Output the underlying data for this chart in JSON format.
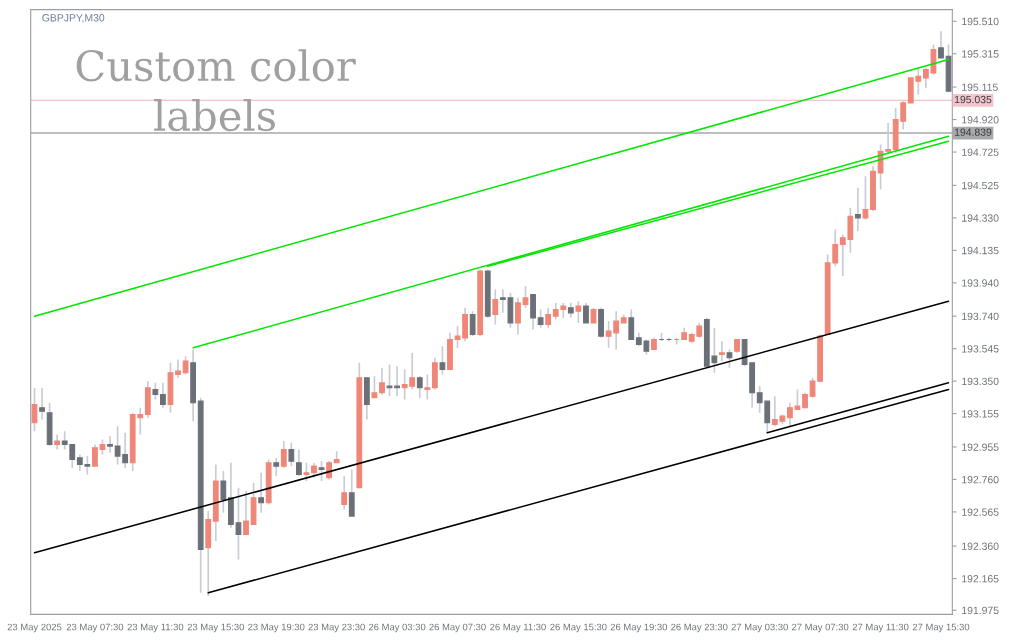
{
  "chart_data": {
    "type": "candlestick",
    "title": "GBPJPY,M30",
    "annotations": [
      "Custom color\nlabels"
    ],
    "categories": [
      "23 May 2025",
      null,
      null,
      null,
      null,
      null,
      null,
      null,
      "23 May 07:30",
      null,
      null,
      null,
      null,
      null,
      null,
      null,
      "23 May 11:30",
      null,
      null,
      null,
      null,
      null,
      null,
      null,
      "23 May 15:30",
      null,
      null,
      null,
      null,
      null,
      null,
      null,
      "23 May 19:30",
      null,
      null,
      null,
      null,
      null,
      null,
      null,
      "23 May 23:30",
      null,
      null,
      null,
      null,
      null,
      null,
      null,
      "26 May 03:30",
      null,
      null,
      null,
      null,
      null,
      null,
      null,
      "26 May 07:30",
      null,
      null,
      null,
      null,
      null,
      null,
      null,
      "26 May 11:30",
      null,
      null,
      null,
      null,
      null,
      null,
      null,
      "26 May 15:30",
      null,
      null,
      null,
      null,
      null,
      null,
      null,
      "26 May 19:30",
      null,
      null,
      null,
      null,
      null,
      null,
      null,
      "26 May 23:30",
      null,
      null,
      null,
      null,
      null,
      null,
      null,
      "27 May 03:30",
      null,
      null,
      null,
      null,
      null,
      null,
      null,
      "27 May 07:30",
      null,
      null,
      null,
      null,
      null,
      null,
      null,
      "27 May 11:30",
      null,
      null,
      null,
      null,
      null,
      null,
      null,
      "27 May 15:30",
      null
    ],
    "ohlc": [
      [
        193.1,
        193.31,
        193.05,
        193.21
      ],
      [
        193.19,
        193.31,
        193.12,
        193.17
      ],
      [
        193.16,
        193.22,
        192.96,
        192.97
      ],
      [
        192.97,
        193.03,
        192.94,
        192.99
      ],
      [
        192.99,
        193.05,
        192.94,
        192.97
      ],
      [
        192.97,
        192.97,
        192.83,
        192.88
      ],
      [
        192.89,
        192.91,
        192.81,
        192.85
      ],
      [
        192.85,
        192.9,
        192.79,
        192.84
      ],
      [
        192.84,
        192.97,
        192.84,
        192.95
      ],
      [
        192.94,
        193.0,
        192.91,
        192.97
      ],
      [
        192.97,
        193.02,
        192.92,
        192.96
      ],
      [
        192.96,
        193.08,
        192.85,
        192.9
      ],
      [
        192.91,
        193.04,
        192.83,
        192.86
      ],
      [
        192.86,
        193.16,
        192.81,
        193.15
      ],
      [
        193.13,
        193.19,
        193.03,
        193.15
      ],
      [
        193.15,
        193.35,
        193.13,
        193.31
      ],
      [
        193.3,
        193.34,
        193.24,
        193.27
      ],
      [
        193.27,
        193.34,
        193.19,
        193.21
      ],
      [
        193.21,
        193.46,
        193.16,
        193.4
      ],
      [
        193.39,
        193.48,
        193.37,
        193.41
      ],
      [
        193.4,
        193.5,
        193.39,
        193.47
      ],
      [
        193.46,
        193.54,
        193.11,
        193.22
      ],
      [
        193.23,
        193.25,
        192.08,
        192.34
      ],
      [
        192.35,
        192.57,
        192.06,
        192.52
      ],
      [
        192.51,
        192.85,
        192.39,
        192.75
      ],
      [
        192.75,
        192.81,
        192.56,
        192.64
      ],
      [
        192.65,
        192.86,
        192.47,
        192.49
      ],
      [
        192.5,
        192.71,
        192.28,
        192.43
      ],
      [
        192.43,
        192.69,
        192.43,
        192.51
      ],
      [
        192.49,
        192.74,
        192.49,
        192.65
      ],
      [
        192.65,
        192.8,
        192.56,
        192.62
      ],
      [
        192.62,
        192.88,
        192.61,
        192.86
      ],
      [
        192.86,
        192.89,
        192.78,
        192.84
      ],
      [
        192.84,
        192.99,
        192.83,
        192.94
      ],
      [
        192.94,
        192.98,
        192.84,
        192.87
      ],
      [
        192.86,
        192.94,
        192.78,
        192.79
      ],
      [
        192.79,
        192.86,
        192.75,
        192.8
      ],
      [
        192.8,
        192.86,
        192.77,
        192.84
      ],
      [
        192.83,
        192.87,
        192.75,
        192.82
      ],
      [
        192.77,
        192.87,
        192.76,
        192.86
      ],
      [
        192.86,
        192.93,
        192.86,
        192.88
      ],
      [
        192.61,
        192.78,
        192.58,
        192.68
      ],
      [
        192.68,
        192.82,
        192.54,
        192.54
      ],
      [
        192.71,
        193.46,
        192.71,
        193.37
      ],
      [
        193.37,
        193.37,
        193.12,
        193.21
      ],
      [
        193.25,
        193.38,
        193.25,
        193.28
      ],
      [
        193.28,
        193.43,
        193.27,
        193.34
      ],
      [
        193.32,
        193.45,
        193.26,
        193.31
      ],
      [
        193.32,
        193.44,
        193.26,
        193.31
      ],
      [
        193.31,
        193.42,
        193.24,
        193.33
      ],
      [
        193.32,
        193.52,
        193.3,
        193.37
      ],
      [
        193.37,
        193.38,
        193.25,
        193.31
      ],
      [
        193.3,
        193.39,
        193.24,
        193.31
      ],
      [
        193.31,
        193.49,
        193.3,
        193.46
      ],
      [
        193.46,
        193.56,
        193.39,
        193.42
      ],
      [
        193.42,
        193.64,
        193.42,
        193.6
      ],
      [
        193.6,
        193.68,
        193.55,
        193.62
      ],
      [
        193.61,
        193.79,
        193.59,
        193.75
      ],
      [
        193.75,
        193.77,
        193.62,
        193.63
      ],
      [
        193.63,
        194.02,
        193.62,
        194.01
      ],
      [
        194.01,
        194.02,
        193.73,
        193.74
      ],
      [
        193.75,
        193.9,
        193.69,
        193.84
      ],
      [
        193.85,
        193.9,
        193.76,
        193.84
      ],
      [
        193.85,
        193.88,
        193.67,
        193.7
      ],
      [
        193.7,
        193.85,
        193.63,
        193.82
      ],
      [
        193.81,
        193.92,
        193.79,
        193.85
      ],
      [
        193.87,
        193.87,
        193.66,
        193.73
      ],
      [
        193.73,
        193.78,
        193.67,
        193.69
      ],
      [
        193.69,
        193.79,
        193.67,
        193.75
      ],
      [
        193.74,
        193.82,
        193.72,
        193.78
      ],
      [
        193.78,
        193.82,
        193.73,
        193.8
      ],
      [
        193.79,
        193.82,
        193.73,
        193.76
      ],
      [
        193.77,
        193.83,
        193.7,
        193.8
      ],
      [
        193.8,
        193.82,
        193.7,
        193.7
      ],
      [
        193.7,
        193.79,
        193.7,
        193.78
      ],
      [
        193.78,
        193.79,
        193.61,
        193.62
      ],
      [
        193.62,
        193.71,
        193.55,
        193.65
      ],
      [
        193.64,
        193.77,
        193.54,
        193.71
      ],
      [
        193.7,
        193.75,
        193.7,
        193.73
      ],
      [
        193.73,
        193.78,
        193.6,
        193.6
      ],
      [
        193.61,
        193.64,
        193.56,
        193.57
      ],
      [
        193.59,
        193.6,
        193.51,
        193.53
      ],
      [
        193.54,
        193.61,
        193.54,
        193.6
      ],
      [
        193.6,
        193.64,
        193.59,
        193.6
      ],
      [
        193.6,
        193.61,
        193.59,
        193.6
      ],
      [
        193.6,
        193.61,
        193.57,
        193.6
      ],
      [
        193.6,
        193.67,
        193.6,
        193.64
      ],
      [
        193.59,
        193.64,
        193.58,
        193.63
      ],
      [
        193.62,
        193.7,
        193.61,
        193.68
      ],
      [
        193.72,
        193.73,
        193.44,
        193.44
      ],
      [
        193.5,
        193.67,
        193.4,
        193.46
      ],
      [
        193.51,
        193.59,
        193.47,
        193.52
      ],
      [
        193.52,
        193.54,
        193.43,
        193.49
      ],
      [
        193.53,
        193.6,
        193.52,
        193.6
      ],
      [
        193.6,
        193.6,
        193.44,
        193.45
      ],
      [
        193.46,
        193.46,
        193.19,
        193.28
      ],
      [
        193.28,
        193.32,
        193.16,
        193.22
      ],
      [
        193.23,
        193.23,
        193.04,
        193.1
      ],
      [
        193.09,
        193.26,
        193.08,
        193.12
      ],
      [
        193.11,
        193.15,
        193.09,
        193.14
      ],
      [
        193.13,
        193.22,
        193.08,
        193.19
      ],
      [
        193.18,
        193.3,
        193.18,
        193.2
      ],
      [
        193.19,
        193.28,
        193.19,
        193.27
      ],
      [
        193.26,
        193.37,
        193.25,
        193.35
      ],
      [
        193.35,
        193.63,
        193.35,
        193.62
      ],
      [
        193.63,
        194.11,
        193.63,
        194.06
      ],
      [
        194.06,
        194.26,
        194.04,
        194.17
      ],
      [
        194.17,
        194.23,
        193.98,
        194.21
      ],
      [
        194.2,
        194.39,
        194.12,
        194.34
      ],
      [
        194.35,
        194.51,
        194.25,
        194.33
      ],
      [
        194.33,
        194.58,
        194.32,
        194.38
      ],
      [
        194.38,
        194.64,
        194.37,
        194.61
      ],
      [
        194.6,
        194.77,
        194.5,
        194.73
      ],
      [
        194.73,
        194.9,
        194.71,
        194.74
      ],
      [
        194.74,
        194.99,
        194.72,
        194.92
      ],
      [
        194.91,
        195.03,
        194.86,
        195.02
      ],
      [
        195.02,
        195.17,
        195.02,
        195.17
      ],
      [
        195.15,
        195.23,
        195.07,
        195.18
      ],
      [
        195.17,
        195.23,
        195.11,
        195.22
      ],
      [
        195.2,
        195.37,
        195.19,
        195.34
      ],
      [
        195.35,
        195.45,
        195.29,
        195.29
      ],
      [
        195.3,
        195.37,
        195.09,
        195.09
      ]
    ],
    "colors": [
      "#ef8677",
      "#6b7078",
      "#6b7078",
      "#ef8677",
      "#6b7078",
      "#6b7078",
      "#6b7078",
      "#6b7078",
      "#ef8677",
      "#ef8677",
      "#6b7078",
      "#6b7078",
      "#6b7078",
      "#ef8677",
      "#ef8677",
      "#ef8677",
      "#6b7078",
      "#6b7078",
      "#ef8677",
      "#ef8677",
      "#ef8677",
      "#6b7078",
      "#6b7078",
      "#ef8677",
      "#ef8677",
      "#6b7078",
      "#6b7078",
      "#6b7078",
      "#ef8677",
      "#ef8677",
      "#6b7078",
      "#ef8677",
      "#6b7078",
      "#ef8677",
      "#6b7078",
      "#6b7078",
      "#ef8677",
      "#ef8677",
      "#6b7078",
      "#ef8677",
      "#ef8677",
      "#ef8677",
      "#6b7078",
      "#ef8677",
      "#6b7078",
      "#ef8677",
      "#ef8677",
      "#6b7078",
      "#6b7078",
      "#ef8677",
      "#ef8677",
      "#6b7078",
      "#ef8677",
      "#ef8677",
      "#6b7078",
      "#ef8677",
      "#ef8677",
      "#ef8677",
      "#6b7078",
      "#ef8677",
      "#6b7078",
      "#ef8677",
      "#6b7078",
      "#6b7078",
      "#ef8677",
      "#ef8677",
      "#6b7078",
      "#6b7078",
      "#ef8677",
      "#ef8677",
      "#ef8677",
      "#6b7078",
      "#ef8677",
      "#6b7078",
      "#ef8677",
      "#6b7078",
      "#ef8677",
      "#ef8677",
      "#ef8677",
      "#6b7078",
      "#6b7078",
      "#6b7078",
      "#ef8677",
      "#6b7078",
      "#6b7078",
      "#ef8677",
      "#ef8677",
      "#ef8677",
      "#ef8677",
      "#6b7078",
      "#6b7078",
      "#ef8677",
      "#6b7078",
      "#ef8677",
      "#6b7078",
      "#6b7078",
      "#6b7078",
      "#6b7078",
      "#ef8677",
      "#ef8677",
      "#ef8677",
      "#ef8677",
      "#ef8677",
      "#ef8677",
      "#ef8677",
      "#ef8677",
      "#ef8677",
      "#ef8677",
      "#ef8677",
      "#6b7078",
      "#ef8677",
      "#ef8677",
      "#ef8677",
      "#ef8677",
      "#ef8677",
      "#ef8677",
      "#ef8677",
      "#ef8677",
      "#ef8677",
      "#ef8677",
      "#6b7078",
      "#6b7078"
    ],
    "series": [
      {
        "type": "line",
        "color": "#00e600",
        "values": [
          193.74,
          null,
          null,
          null,
          null,
          null,
          null,
          null,
          null,
          null,
          null,
          null,
          null,
          null,
          null,
          null,
          null,
          null,
          null,
          null,
          null,
          null,
          null,
          null,
          null,
          null,
          null,
          null,
          null,
          null,
          null,
          null,
          null,
          null,
          null,
          null,
          null,
          null,
          null,
          null,
          null,
          null,
          null,
          null,
          null,
          null,
          null,
          null,
          null,
          null,
          null,
          null,
          null,
          null,
          null,
          null,
          null,
          null,
          null,
          null,
          null,
          null,
          null,
          null,
          null,
          null,
          null,
          null,
          null,
          null,
          null,
          null,
          null,
          null,
          null,
          null,
          null,
          null,
          null,
          null,
          null,
          null,
          null,
          null,
          null,
          null,
          null,
          null,
          null,
          null,
          null,
          null,
          null,
          null,
          null,
          null,
          null,
          null,
          null,
          null,
          null,
          null,
          null,
          null,
          null,
          null,
          null,
          null,
          null,
          null,
          null,
          null,
          null,
          null,
          null,
          null,
          null,
          null,
          null,
          null,
          null,
          195.28
        ]
      },
      {
        "type": "line",
        "color": "#00e600",
        "values": [
          null,
          null,
          null,
          null,
          null,
          null,
          null,
          null,
          null,
          null,
          null,
          null,
          null,
          null,
          null,
          null,
          null,
          null,
          null,
          null,
          null,
          193.55,
          null,
          null,
          null,
          null,
          null,
          null,
          null,
          null,
          null,
          null,
          null,
          null,
          null,
          null,
          null,
          null,
          null,
          null,
          null,
          null,
          null,
          null,
          null,
          null,
          null,
          null,
          null,
          null,
          null,
          null,
          null,
          null,
          null,
          null,
          null,
          null,
          null,
          null,
          null,
          null,
          null,
          null,
          null,
          null,
          null,
          null,
          null,
          null,
          null,
          null,
          null,
          null,
          null,
          null,
          null,
          null,
          null,
          null,
          null,
          null,
          null,
          null,
          null,
          null,
          null,
          null,
          null,
          null,
          null,
          null,
          null,
          null,
          null,
          null,
          null,
          null,
          null,
          null,
          null,
          null,
          null,
          null,
          null,
          null,
          null,
          null,
          null,
          null,
          null,
          null,
          null,
          null,
          null,
          null,
          null,
          null,
          null,
          null,
          null,
          194.82
        ]
      },
      {
        "type": "line",
        "color": "#00e600",
        "values": [
          null,
          null,
          null,
          null,
          null,
          null,
          null,
          null,
          null,
          null,
          null,
          null,
          null,
          null,
          null,
          null,
          null,
          null,
          null,
          null,
          null,
          null,
          null,
          null,
          null,
          null,
          null,
          null,
          null,
          null,
          null,
          null,
          null,
          null,
          null,
          null,
          null,
          null,
          null,
          null,
          null,
          null,
          null,
          null,
          null,
          null,
          null,
          null,
          null,
          null,
          null,
          null,
          null,
          null,
          null,
          null,
          null,
          null,
          null,
          null,
          194.04,
          null,
          null,
          null,
          null,
          null,
          null,
          null,
          null,
          null,
          null,
          null,
          null,
          null,
          null,
          null,
          null,
          null,
          null,
          null,
          null,
          null,
          null,
          null,
          null,
          null,
          null,
          null,
          null,
          null,
          null,
          null,
          null,
          null,
          null,
          null,
          null,
          null,
          null,
          null,
          null,
          null,
          null,
          null,
          null,
          null,
          null,
          null,
          null,
          null,
          null,
          null,
          null,
          null,
          null,
          null,
          null,
          null,
          null,
          null,
          null,
          194.79
        ]
      },
      {
        "type": "line",
        "color": "#000000",
        "values": [
          192.32,
          null,
          null,
          null,
          null,
          null,
          null,
          null,
          null,
          null,
          null,
          null,
          null,
          null,
          null,
          null,
          null,
          null,
          null,
          null,
          null,
          null,
          null,
          null,
          null,
          null,
          null,
          null,
          null,
          null,
          null,
          null,
          null,
          null,
          null,
          null,
          null,
          null,
          null,
          null,
          null,
          null,
          null,
          null,
          null,
          null,
          null,
          null,
          null,
          null,
          null,
          null,
          null,
          null,
          null,
          null,
          null,
          null,
          null,
          null,
          null,
          null,
          null,
          null,
          null,
          null,
          null,
          null,
          null,
          null,
          null,
          null,
          null,
          null,
          null,
          null,
          null,
          null,
          null,
          null,
          null,
          null,
          null,
          null,
          null,
          null,
          null,
          null,
          null,
          null,
          null,
          null,
          null,
          null,
          null,
          null,
          null,
          null,
          null,
          null,
          null,
          null,
          null,
          null,
          null,
          null,
          null,
          null,
          null,
          null,
          null,
          null,
          null,
          null,
          null,
          null,
          null,
          null,
          null,
          null,
          null,
          193.83
        ]
      },
      {
        "type": "line",
        "color": "#000000",
        "values": [
          null,
          null,
          null,
          null,
          null,
          null,
          null,
          null,
          null,
          null,
          null,
          null,
          null,
          null,
          null,
          null,
          null,
          null,
          null,
          null,
          null,
          null,
          null,
          192.08,
          null,
          null,
          null,
          null,
          null,
          null,
          null,
          null,
          null,
          null,
          null,
          null,
          null,
          null,
          null,
          null,
          null,
          null,
          null,
          null,
          null,
          null,
          null,
          null,
          null,
          null,
          null,
          null,
          null,
          null,
          null,
          null,
          null,
          null,
          null,
          null,
          null,
          null,
          null,
          null,
          null,
          null,
          null,
          null,
          null,
          null,
          null,
          null,
          null,
          null,
          null,
          null,
          null,
          null,
          null,
          null,
          null,
          null,
          null,
          null,
          null,
          null,
          null,
          null,
          null,
          null,
          null,
          null,
          null,
          null,
          null,
          null,
          null,
          null,
          null,
          null,
          null,
          null,
          null,
          null,
          null,
          null,
          null,
          null,
          null,
          null,
          null,
          null,
          null,
          null,
          null,
          null,
          null,
          null,
          null,
          null,
          null,
          193.3
        ]
      },
      {
        "type": "line",
        "color": "#000000",
        "values": [
          null,
          null,
          null,
          null,
          null,
          null,
          null,
          null,
          null,
          null,
          null,
          null,
          null,
          null,
          null,
          null,
          null,
          null,
          null,
          null,
          null,
          null,
          null,
          null,
          null,
          null,
          null,
          null,
          null,
          null,
          null,
          null,
          null,
          null,
          null,
          null,
          null,
          null,
          null,
          null,
          null,
          null,
          null,
          null,
          null,
          null,
          null,
          null,
          null,
          null,
          null,
          null,
          null,
          null,
          null,
          null,
          null,
          null,
          null,
          null,
          null,
          null,
          null,
          null,
          null,
          null,
          null,
          null,
          null,
          null,
          null,
          null,
          null,
          null,
          null,
          null,
          null,
          null,
          null,
          null,
          null,
          null,
          null,
          null,
          null,
          null,
          null,
          null,
          null,
          null,
          null,
          null,
          null,
          null,
          null,
          null,
          null,
          193.04,
          null,
          null,
          null,
          null,
          null,
          null,
          null,
          null,
          null,
          null,
          null,
          null,
          null,
          null,
          null,
          null,
          null,
          null,
          null,
          null,
          null,
          null,
          null,
          193.34
        ]
      }
    ],
    "ref_lines": [
      {
        "axis": "y",
        "value": 195.035,
        "label": "195.035",
        "color": "#f2c4cc"
      },
      {
        "axis": "y",
        "value": 194.839,
        "label": "194.839",
        "color": "#a7a9ad"
      }
    ],
    "ylim": [
      191.95,
      195.58
    ],
    "yticks": [
      191.975,
      192.165,
      {
        "value": 192.36,
        "label": "192.360"
      },
      192.565,
      {
        "value": 192.76,
        "label": "192.760"
      },
      192.955,
      193.155,
      {
        "value": 193.35,
        "label": "193.350"
      },
      193.545,
      {
        "value": 193.74,
        "label": "193.740"
      },
      {
        "value": 193.94,
        "label": "193.940"
      },
      194.135,
      {
        "value": 194.33,
        "label": "194.330"
      },
      194.525,
      194.725,
      {
        "value": 194.92,
        "label": "194.920"
      },
      195.115,
      195.315,
      {
        "value": 195.51,
        "label": "195.510"
      }
    ],
    "grid": false,
    "legend": false
  }
}
